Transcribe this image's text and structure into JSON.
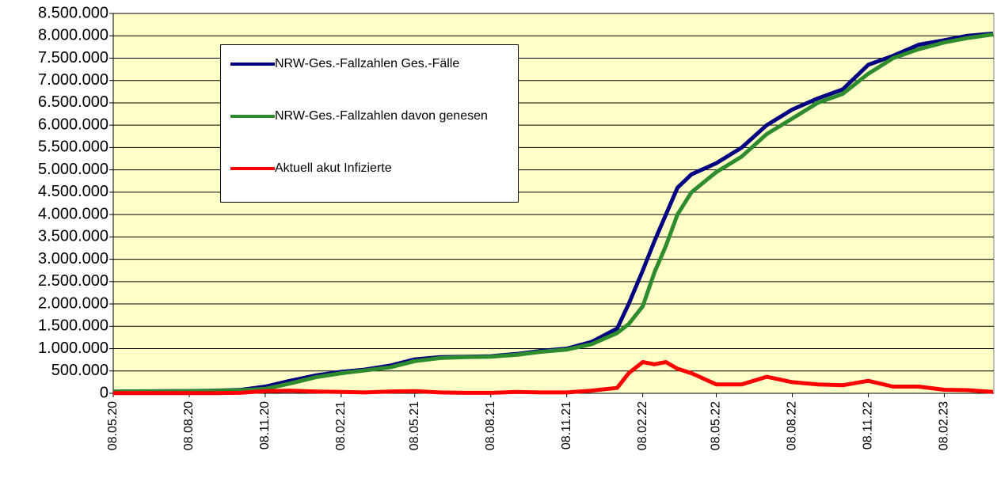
{
  "chart_data": {
    "type": "line",
    "x": [
      "08.05.20",
      "08.06.20",
      "08.07.20",
      "08.08.20",
      "08.09.20",
      "08.10.20",
      "08.11.20",
      "08.12.20",
      "08.01.21",
      "08.02.21",
      "08.03.21",
      "08.04.21",
      "08.05.21",
      "08.06.21",
      "08.07.21",
      "08.08.21",
      "08.09.21",
      "08.10.21",
      "08.11.21",
      "08.12.21",
      "08.01.22",
      "22.01.22",
      "08.02.22",
      "22.02.22",
      "08.03.22",
      "22.03.22",
      "08.04.22",
      "08.05.22",
      "08.06.22",
      "08.07.22",
      "08.08.22",
      "08.09.22",
      "08.10.22",
      "08.11.22",
      "08.12.22",
      "08.01.23",
      "08.02.23",
      "08.03.23",
      "08.04.23"
    ],
    "series": [
      {
        "name": "NRW-Ges.-Fallzahlen Ges.-Fälle",
        "color": "#000080",
        "values": [
          40000,
          45000,
          48000,
          52000,
          60000,
          75000,
          150000,
          280000,
          400000,
          480000,
          530000,
          620000,
          760000,
          810000,
          820000,
          830000,
          880000,
          950000,
          1000000,
          1150000,
          1450000,
          2000000,
          2750000,
          3400000,
          4000000,
          4600000,
          4900000,
          5150000,
          5500000,
          6000000,
          6350000,
          6600000,
          6800000,
          7350000,
          7550000,
          7800000,
          7900000,
          8000000,
          8050000
        ]
      },
      {
        "name": "NRW-Ges.-Fallzahlen davon genesen",
        "color": "#2e8b2e",
        "values": [
          35000,
          42000,
          45000,
          48000,
          55000,
          65000,
          100000,
          220000,
          360000,
          450000,
          510000,
          580000,
          720000,
          790000,
          810000,
          820000,
          860000,
          930000,
          980000,
          1100000,
          1350000,
          1550000,
          1950000,
          2700000,
          3300000,
          4000000,
          4500000,
          4950000,
          5300000,
          5800000,
          6150000,
          6500000,
          6700000,
          7150000,
          7500000,
          7700000,
          7850000,
          7950000,
          8030000
        ]
      },
      {
        "name": "Aktuell akut Infizierte",
        "color": "#ff0000",
        "values": [
          5000,
          3000,
          3000,
          4000,
          5000,
          10000,
          50000,
          60000,
          40000,
          30000,
          20000,
          40000,
          50000,
          20000,
          10000,
          10000,
          30000,
          20000,
          20000,
          60000,
          120000,
          450000,
          700000,
          650000,
          700000,
          550000,
          450000,
          200000,
          200000,
          370000,
          250000,
          200000,
          180000,
          280000,
          150000,
          150000,
          80000,
          70000,
          30000
        ]
      }
    ],
    "xlim": [
      "08.05.20",
      "09.04.23"
    ],
    "xticks": [
      "08.05.20",
      "08.08.20",
      "08.11.20",
      "08.02.21",
      "08.05.21",
      "08.08.21",
      "08.11.21",
      "08.02.22",
      "08.05.22",
      "08.08.22",
      "08.11.22",
      "08.02.23"
    ],
    "ylim": [
      0,
      8500000
    ],
    "yticks": [
      0,
      {
        "value": 500000,
        "label": "500.000"
      },
      {
        "value": 1000000,
        "label": "1.000.000"
      },
      {
        "value": 1500000,
        "label": "1.500.000"
      },
      {
        "value": 2000000,
        "label": "2.000.000"
      },
      {
        "value": 2500000,
        "label": "2.500.000"
      },
      {
        "value": 3000000,
        "label": "3.000.000"
      },
      {
        "value": 3500000,
        "label": "3.500.000"
      },
      {
        "value": 4000000,
        "label": "4.000.000"
      },
      {
        "value": 4500000,
        "label": "4.500.000"
      },
      {
        "value": 5000000,
        "label": "5.000.000"
      },
      {
        "value": 5500000,
        "label": "5.500.000"
      },
      {
        "value": 6000000,
        "label": "6.000.000"
      },
      {
        "value": 6500000,
        "label": "6.500.000"
      },
      {
        "value": 7000000,
        "label": "7.000.000"
      },
      {
        "value": 7500000,
        "label": "7.500.000"
      },
      {
        "value": 8000000,
        "label": "8.000.000"
      },
      {
        "value": 8500000,
        "label": "8.500.000"
      }
    ],
    "grid": true,
    "plot_background": "#ffffc8"
  }
}
